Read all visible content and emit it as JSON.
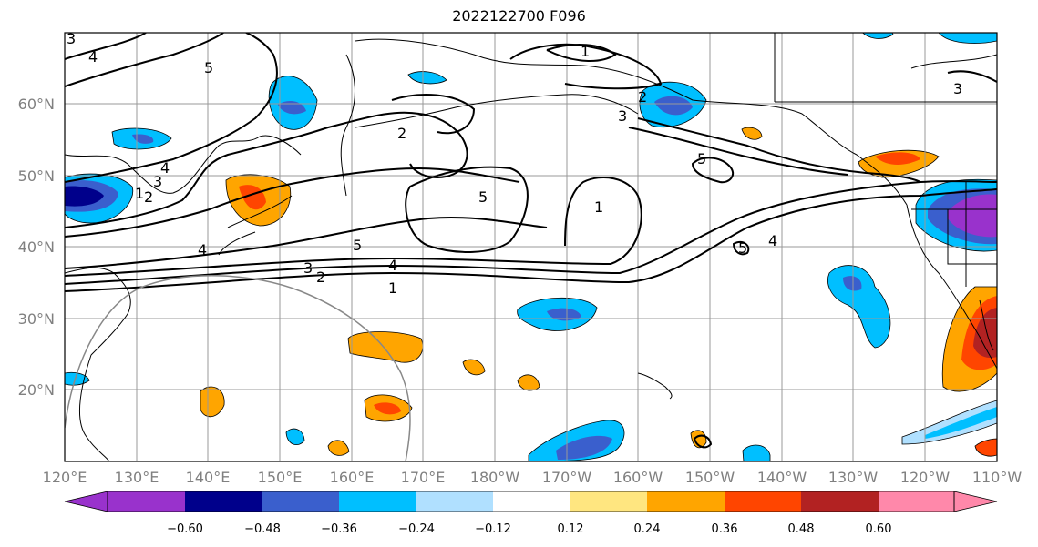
{
  "title": "2022122700 F096",
  "map": {
    "lat_ticks": [
      "60°N",
      "50°N",
      "40°N",
      "30°N",
      "20°N"
    ],
    "lon_ticks": [
      "120°E",
      "130°E",
      "140°E",
      "150°E",
      "160°E",
      "170°E",
      "180°W",
      "170°W",
      "160°W",
      "150°W",
      "140°W",
      "130°W",
      "120°W",
      "110°W"
    ],
    "lon_range": [
      120,
      250
    ],
    "lat_range": [
      10,
      70
    ],
    "contour_labels": [
      {
        "text": "4"
      },
      {
        "text": "5"
      },
      {
        "text": "4"
      },
      {
        "text": "3"
      },
      {
        "text": "2"
      },
      {
        "text": "1"
      },
      {
        "text": "2"
      },
      {
        "text": "1"
      },
      {
        "text": "2"
      },
      {
        "text": "3"
      },
      {
        "text": "5"
      },
      {
        "text": "5"
      },
      {
        "text": "1"
      },
      {
        "text": "5"
      },
      {
        "text": "4"
      },
      {
        "text": "3"
      },
      {
        "text": "2"
      },
      {
        "text": "4"
      },
      {
        "text": "1"
      },
      {
        "text": "5"
      },
      {
        "text": "4"
      },
      {
        "text": "3"
      },
      {
        "text": "3"
      }
    ]
  },
  "colorbar": {
    "ticks": [
      "−0.60",
      "−0.48",
      "−0.36",
      "−0.24",
      "−0.12",
      "0.12",
      "0.24",
      "0.36",
      "0.48",
      "0.60"
    ],
    "colors": [
      "#9932cc",
      "#00008b",
      "#3a5fcd",
      "#00bfff",
      "#b0e0ff",
      "#ffffff",
      "#ffe680",
      "#ffa500",
      "#ff4500",
      "#b22222",
      "#ff88aa"
    ],
    "extend": "both"
  }
}
